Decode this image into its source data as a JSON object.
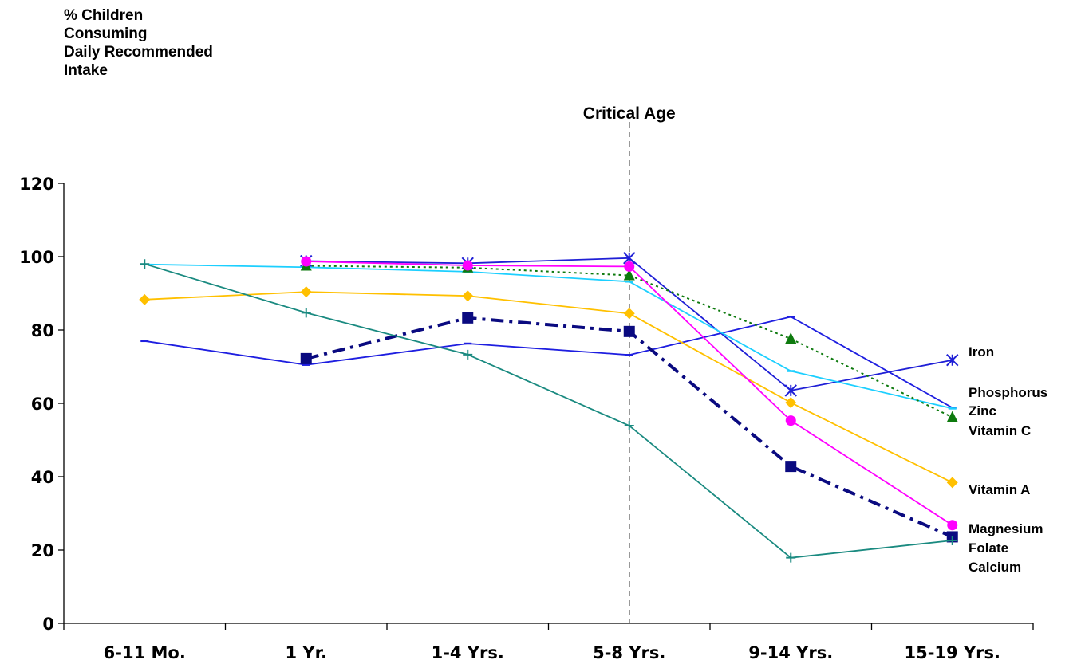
{
  "chart_data": {
    "type": "line",
    "ylabel_lines": [
      "% Children",
      "Consuming",
      "Daily Recommended",
      "Intake"
    ],
    "xlabel": "",
    "categories": [
      "6-11 Mo.",
      "1 Yr.",
      "1-4 Yrs.",
      "5-8 Yrs.",
      "9-14 Yrs.",
      "15-19 Yrs."
    ],
    "ylim": [
      0,
      120
    ],
    "yticks": [
      0,
      20,
      40,
      60,
      80,
      100,
      120
    ],
    "annotation": {
      "label": "Critical Age",
      "at_category": "5-8 Yrs."
    },
    "series": [
      {
        "name": "Iron",
        "color": "#1f1fd6",
        "marker": "asterisk",
        "dash": "solid",
        "values": [
          null,
          98.8,
          98.2,
          99.6,
          63.5,
          71.8
        ]
      },
      {
        "name": "Phosphorus",
        "color": "#1e1ee0",
        "marker": "dash",
        "dash": "solid",
        "values": [
          77,
          70.5,
          76.3,
          73.2,
          83.6,
          58.8
        ]
      },
      {
        "name": "Zinc",
        "color": "#1ccfff",
        "marker": "dash",
        "dash": "solid",
        "values": [
          97.9,
          97.1,
          95.9,
          93.2,
          68.8,
          58.6
        ]
      },
      {
        "name": "Vitamin C",
        "color": "#0e7a0e",
        "marker": "triangle",
        "dash": "dotted",
        "values": [
          null,
          97.5,
          97.0,
          94.9,
          77.6,
          56.2
        ]
      },
      {
        "name": "Vitamin A",
        "color": "#ffc000",
        "marker": "diamond",
        "dash": "solid",
        "values": [
          88.3,
          90.4,
          89.3,
          84.5,
          60.2,
          38.4
        ]
      },
      {
        "name": "Magnesium",
        "color": "#ff00ff",
        "marker": "circle",
        "dash": "solid",
        "values": [
          null,
          98.7,
          97.6,
          97.3,
          55.3,
          26.8
        ]
      },
      {
        "name": "Folate",
        "color": "#0a0a80",
        "marker": "square",
        "dash": "dashdot",
        "values": [
          null,
          72.2,
          83.3,
          79.6,
          42.8,
          23.6
        ]
      },
      {
        "name": "Calcium",
        "color": "#1a8a80",
        "marker": "plus",
        "dash": "solid",
        "values": [
          98.0,
          84.7,
          73.3,
          53.9,
          17.9,
          22.6
        ]
      }
    ],
    "legend_labels": [
      "Iron",
      "Phosphorus",
      "Zinc",
      "Vitamin C",
      "Vitamin A",
      "Magnesium",
      "Folate",
      "Calcium"
    ],
    "legend_placement": "right"
  }
}
